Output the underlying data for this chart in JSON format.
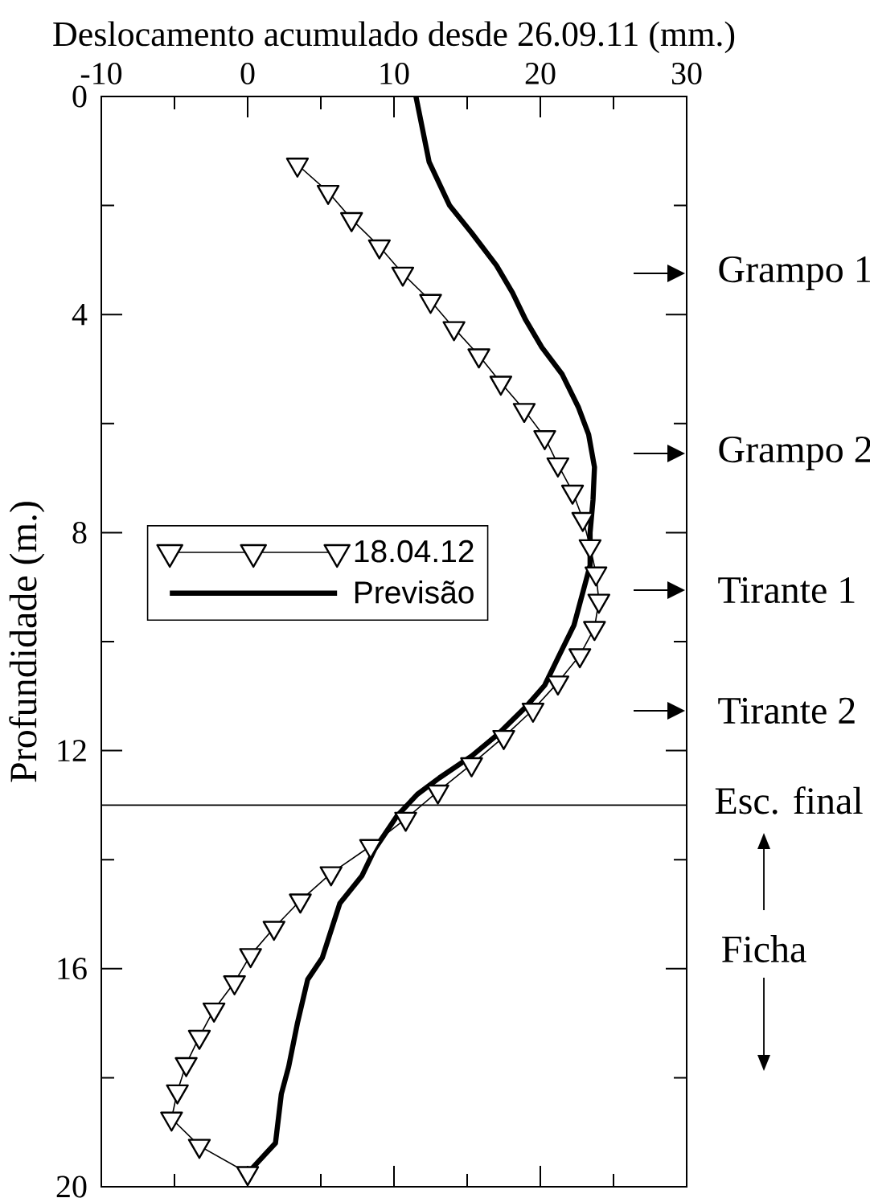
{
  "chart_data": {
    "type": "line",
    "xlabel": "Deslocamento acumulado desde 26.09.11 (mm.)",
    "ylabel": "Profundidade (m.)",
    "xlim": [
      -10,
      30
    ],
    "xticks": [
      -10,
      {
        "value": -5,
        "label": null
      },
      0,
      {
        "value": 5,
        "label": null
      },
      10,
      {
        "value": 15,
        "label": null
      },
      20,
      {
        "value": 25,
        "label": null
      },
      30
    ],
    "ylim": [
      20,
      0
    ],
    "yticks": [
      0,
      {
        "value": 2,
        "label": null
      },
      4,
      {
        "value": 6,
        "label": null
      },
      8,
      {
        "value": 10,
        "label": null
      },
      12,
      {
        "value": 14,
        "label": null
      },
      16,
      {
        "value": 18,
        "label": null
      },
      20
    ],
    "legend": "left",
    "series": [
      {
        "name": "18.04.12",
        "color": "#000000",
        "marker": "triangle",
        "x": [
          3.4,
          5.5,
          7.1,
          9.0,
          10.6,
          12.5,
          14.1,
          15.8,
          17.3,
          18.9,
          20.3,
          21.2,
          22.2,
          22.9,
          23.4,
          23.8,
          24.0,
          23.7,
          22.7,
          21.2,
          19.5,
          17.5,
          15.3,
          13.0,
          10.8,
          8.4,
          5.7,
          3.6,
          1.8,
          0.2,
          -0.9,
          -2.3,
          -3.3,
          -4.2,
          -4.8,
          -5.2,
          -3.3,
          0.0
        ],
        "values": [
          1.25,
          1.75,
          2.25,
          2.75,
          3.25,
          3.75,
          4.25,
          4.75,
          5.25,
          5.75,
          6.25,
          6.75,
          7.25,
          7.75,
          8.25,
          8.75,
          9.25,
          9.75,
          10.25,
          10.75,
          11.25,
          11.75,
          12.25,
          12.75,
          13.25,
          13.75,
          14.25,
          14.75,
          15.25,
          15.75,
          16.25,
          16.75,
          17.25,
          17.75,
          18.25,
          18.75,
          19.25,
          19.75
        ]
      },
      {
        "name": "Previsão",
        "color": "#000000",
        "marker": "none",
        "x": [
          11.5,
          12.4,
          13.8,
          15.3,
          17.0,
          18.1,
          19.0,
          20.1,
          21.5,
          22.6,
          23.3,
          23.7,
          23.6,
          23.4,
          23.4,
          23.0,
          22.3,
          21.2,
          20.3,
          19.0,
          17.1,
          15.3,
          13.1,
          11.6,
          10.2,
          8.7,
          7.8,
          6.3,
          5.1,
          4.1,
          3.4,
          2.8,
          2.3,
          1.9,
          0.0
        ],
        "values": [
          0,
          1.2,
          2.0,
          2.5,
          3.1,
          3.6,
          4.1,
          4.6,
          5.1,
          5.7,
          6.2,
          6.8,
          7.4,
          8.0,
          8.6,
          9.0,
          9.7,
          10.3,
          10.8,
          11.2,
          11.7,
          12.1,
          12.5,
          12.8,
          13.2,
          13.8,
          14.3,
          14.8,
          15.8,
          16.2,
          17.0,
          17.8,
          18.3,
          19.2,
          19.75
        ]
      }
    ],
    "ref_lines": [
      {
        "axis": "y",
        "value": 13,
        "label": "Esc. final"
      }
    ],
    "annotations": [
      "Grampo 1",
      "Grampo 2",
      "Tirante 1",
      "Tirante 2",
      "Ficha"
    ]
  }
}
